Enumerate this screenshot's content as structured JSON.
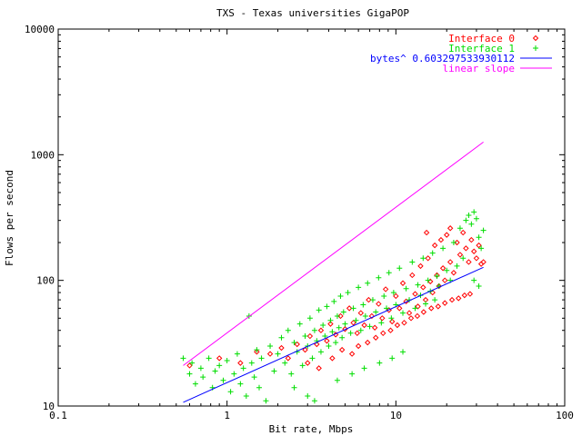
{
  "chart_data": {
    "type": "scatter",
    "title": "TXS - Texas universities GigaPOP",
    "xlabel": "Bit rate, Mbps",
    "ylabel": "Flows per second",
    "x_scale": "log",
    "y_scale": "log",
    "xlim": [
      0.1,
      100
    ],
    "ylim": [
      10,
      10000
    ],
    "x_ticks": [
      {
        "value": 0.1,
        "label": "0.1"
      },
      {
        "value": 1,
        "label": "1"
      },
      {
        "value": 10,
        "label": "10"
      },
      {
        "value": 100,
        "label": "100"
      }
    ],
    "y_ticks": [
      {
        "value": 10,
        "label": "10"
      },
      {
        "value": 100,
        "label": "100"
      },
      {
        "value": 1000,
        "label": "1000"
      },
      {
        "value": 10000,
        "label": "10000"
      }
    ],
    "grid": false,
    "legend_position": "top-right",
    "series": [
      {
        "name": "Interface 0",
        "kind": "scatter",
        "marker": "diamond",
        "color": "#ff0000",
        "points": [
          [
            0.6,
            21
          ],
          [
            0.9,
            24
          ],
          [
            1.2,
            22
          ],
          [
            1.5,
            27
          ],
          [
            1.8,
            26
          ],
          [
            2.1,
            29
          ],
          [
            2.3,
            24
          ],
          [
            2.6,
            31
          ],
          [
            2.9,
            28
          ],
          [
            3.1,
            36
          ],
          [
            3.4,
            31
          ],
          [
            3.6,
            40
          ],
          [
            3.9,
            33
          ],
          [
            4.1,
            45
          ],
          [
            4.4,
            37
          ],
          [
            4.7,
            52
          ],
          [
            5.0,
            41
          ],
          [
            5.3,
            60
          ],
          [
            5.6,
            46
          ],
          [
            5.9,
            38
          ],
          [
            6.2,
            55
          ],
          [
            6.5,
            44
          ],
          [
            6.9,
            70
          ],
          [
            7.2,
            52
          ],
          [
            7.5,
            42
          ],
          [
            7.9,
            65
          ],
          [
            8.3,
            50
          ],
          [
            8.7,
            85
          ],
          [
            9.1,
            58
          ],
          [
            9.5,
            47
          ],
          [
            10,
            75
          ],
          [
            10.5,
            60
          ],
          [
            11,
            95
          ],
          [
            11.5,
            68
          ],
          [
            12,
            55
          ],
          [
            12.5,
            110
          ],
          [
            13,
            78
          ],
          [
            13.5,
            62
          ],
          [
            14,
            130
          ],
          [
            14.5,
            88
          ],
          [
            15,
            70
          ],
          [
            15.5,
            150
          ],
          [
            16,
            98
          ],
          [
            16.5,
            80
          ],
          [
            17,
            190
          ],
          [
            17.5,
            110
          ],
          [
            18,
            90
          ],
          [
            18.5,
            210
          ],
          [
            19,
            125
          ],
          [
            19.5,
            100
          ],
          [
            20,
            230
          ],
          [
            21,
            140
          ],
          [
            22,
            115
          ],
          [
            23,
            200
          ],
          [
            24,
            160
          ],
          [
            25,
            240
          ],
          [
            26,
            180
          ],
          [
            27,
            140
          ],
          [
            28,
            210
          ],
          [
            29,
            170
          ],
          [
            30,
            150
          ],
          [
            31,
            190
          ],
          [
            32,
            135
          ],
          [
            33,
            140
          ],
          [
            3.0,
            22
          ],
          [
            3.5,
            20
          ],
          [
            4.2,
            24
          ],
          [
            4.8,
            28
          ],
          [
            5.5,
            26
          ],
          [
            6.0,
            30
          ],
          [
            6.8,
            32
          ],
          [
            7.6,
            35
          ],
          [
            8.4,
            38
          ],
          [
            9.3,
            40
          ],
          [
            10.2,
            44
          ],
          [
            11.2,
            46
          ],
          [
            12.3,
            50
          ],
          [
            13.4,
            52
          ],
          [
            14.6,
            56
          ],
          [
            16.2,
            60
          ],
          [
            17.8,
            62
          ],
          [
            19.5,
            66
          ],
          [
            21.5,
            70
          ],
          [
            23.5,
            72
          ],
          [
            25.5,
            76
          ],
          [
            27.5,
            78
          ],
          [
            15.2,
            240
          ],
          [
            21,
            260
          ]
        ]
      },
      {
        "name": "Interface 1",
        "kind": "scatter",
        "marker": "plus",
        "color": "#00dd00",
        "points": [
          [
            0.55,
            24
          ],
          [
            0.6,
            18
          ],
          [
            0.62,
            22
          ],
          [
            0.65,
            15
          ],
          [
            0.7,
            20
          ],
          [
            0.72,
            17
          ],
          [
            0.78,
            24
          ],
          [
            0.82,
            14
          ],
          [
            0.85,
            19
          ],
          [
            0.9,
            21
          ],
          [
            0.95,
            16
          ],
          [
            1.0,
            23
          ],
          [
            1.05,
            13
          ],
          [
            1.1,
            18
          ],
          [
            1.15,
            26
          ],
          [
            1.2,
            15
          ],
          [
            1.25,
            20
          ],
          [
            1.3,
            12
          ],
          [
            1.35,
            52
          ],
          [
            1.4,
            22
          ],
          [
            1.45,
            17
          ],
          [
            1.5,
            28
          ],
          [
            1.55,
            14
          ],
          [
            1.6,
            24
          ],
          [
            1.7,
            11
          ],
          [
            1.8,
            30
          ],
          [
            1.9,
            19
          ],
          [
            2.0,
            26
          ],
          [
            2.1,
            35
          ],
          [
            2.2,
            22
          ],
          [
            2.3,
            40
          ],
          [
            2.4,
            18
          ],
          [
            2.5,
            32
          ],
          [
            2.6,
            27
          ],
          [
            2.7,
            45
          ],
          [
            2.8,
            21
          ],
          [
            2.9,
            36
          ],
          [
            3.0,
            30
          ],
          [
            3.1,
            50
          ],
          [
            3.2,
            24
          ],
          [
            3.3,
            40
          ],
          [
            3.4,
            33
          ],
          [
            3.5,
            58
          ],
          [
            3.6,
            27
          ],
          [
            3.7,
            44
          ],
          [
            3.8,
            36
          ],
          [
            3.9,
            62
          ],
          [
            4.0,
            30
          ],
          [
            4.1,
            48
          ],
          [
            4.2,
            39
          ],
          [
            4.3,
            68
          ],
          [
            4.4,
            32
          ],
          [
            4.5,
            52
          ],
          [
            4.6,
            42
          ],
          [
            4.7,
            75
          ],
          [
            4.8,
            35
          ],
          [
            4.9,
            56
          ],
          [
            5.0,
            45
          ],
          [
            5.2,
            80
          ],
          [
            5.4,
            38
          ],
          [
            5.6,
            60
          ],
          [
            5.8,
            48
          ],
          [
            6.0,
            88
          ],
          [
            6.2,
            40
          ],
          [
            6.4,
            64
          ],
          [
            6.6,
            52
          ],
          [
            6.8,
            95
          ],
          [
            7.0,
            43
          ],
          [
            7.3,
            70
          ],
          [
            7.6,
            56
          ],
          [
            7.9,
            105
          ],
          [
            8.2,
            46
          ],
          [
            8.5,
            75
          ],
          [
            8.8,
            60
          ],
          [
            9.1,
            115
          ],
          [
            9.4,
            50
          ],
          [
            9.7,
            80
          ],
          [
            10,
            64
          ],
          [
            10.5,
            125
          ],
          [
            11,
            55
          ],
          [
            11.5,
            86
          ],
          [
            12,
            70
          ],
          [
            12.5,
            140
          ],
          [
            13,
            60
          ],
          [
            13.5,
            92
          ],
          [
            14,
            76
          ],
          [
            14.5,
            150
          ],
          [
            15,
            65
          ],
          [
            15.5,
            100
          ],
          [
            16,
            82
          ],
          [
            16.5,
            165
          ],
          [
            17,
            70
          ],
          [
            17.5,
            108
          ],
          [
            18,
            90
          ],
          [
            19,
            180
          ],
          [
            20,
            120
          ],
          [
            21,
            100
          ],
          [
            22,
            200
          ],
          [
            23,
            130
          ],
          [
            24,
            260
          ],
          [
            25,
            150
          ],
          [
            26,
            300
          ],
          [
            27,
            330
          ],
          [
            28,
            280
          ],
          [
            29,
            350
          ],
          [
            30,
            310
          ],
          [
            31,
            220
          ],
          [
            32,
            180
          ],
          [
            33,
            250
          ],
          [
            29,
            100
          ],
          [
            31,
            90
          ],
          [
            3.0,
            12
          ],
          [
            3.3,
            11
          ],
          [
            2.5,
            14
          ],
          [
            4.5,
            16
          ],
          [
            5.5,
            18
          ],
          [
            6.5,
            20
          ],
          [
            8.0,
            22
          ],
          [
            9.5,
            24
          ],
          [
            11,
            27
          ]
        ]
      },
      {
        "name": "bytes^ 0.603297533930112",
        "kind": "line",
        "color": "#0000ff",
        "points": [
          [
            0.55,
            10.7
          ],
          [
            33,
            127
          ]
        ]
      },
      {
        "name": "linear slope",
        "kind": "line",
        "color": "#ff00ff",
        "points": [
          [
            0.55,
            21
          ],
          [
            33,
            1260
          ]
        ]
      }
    ]
  }
}
